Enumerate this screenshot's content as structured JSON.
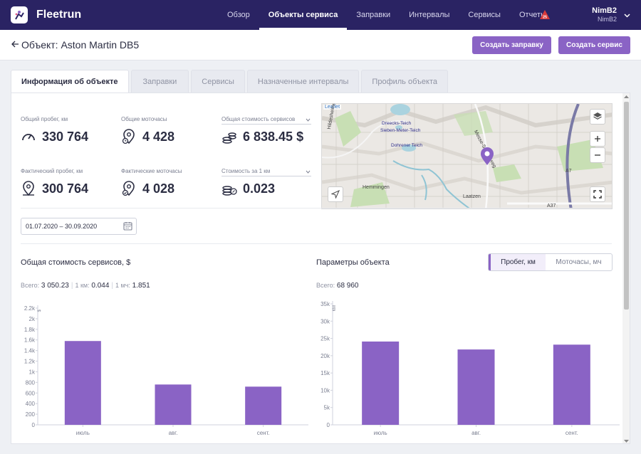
{
  "header": {
    "brand": "Fleetrun",
    "nav": [
      "Обзор",
      "Объекты сервиса",
      "Заправки",
      "Интервалы",
      "Сервисы",
      "Отчеты"
    ],
    "nav_active": 1,
    "notif_count": "25",
    "user_name": "NimB2",
    "user_login": "NimB2"
  },
  "subheader": {
    "title": "Объект: Aston Martin DB5",
    "btn_fuel": "Создать заправку",
    "btn_service": "Создать сервис"
  },
  "tabs": [
    "Информация об объекте",
    "Заправки",
    "Сервисы",
    "Назначенные интервалы",
    "Профиль объекта"
  ],
  "stats": {
    "total_mileage_label": "Общий пробег, км",
    "total_mileage": "330 764",
    "total_hours_label": "Общие моточасы",
    "total_hours": "4 428",
    "total_cost_label": "Общая стоимость сервисов",
    "total_cost": "6 838.45 $",
    "actual_mileage_label": "Фактический пробег, км",
    "actual_mileage": "300 764",
    "actual_hours_label": "Фактические моточасы",
    "actual_hours": "4 028",
    "cost_per_km_label": "Стоимость за 1 км",
    "cost_per_km": "0.023"
  },
  "map": {
    "attribution": "Leaflet",
    "labels": [
      "Dreecks-Teich",
      "Sieben-Meter-Teich",
      "Dohrener Teich",
      "Hemmingen",
      "Laatzen",
      "A7",
      "A37",
      "Messe-Schnellweg",
      "Hildesheimer Str."
    ]
  },
  "date_range": "01.07.2020 – 30.09.2020",
  "cost_chart": {
    "title": "Общая стоимость сервисов, $",
    "total_label": "Всего:",
    "total_value": "3 050.23",
    "per_km_label": "1 км:",
    "per_km_value": "0.044",
    "per_hour_label": "1 мч:",
    "per_hour_value": "1.851"
  },
  "params_chart": {
    "title": "Параметры объекта",
    "total_label": "Всего:",
    "total_value": "68 960",
    "toggle": [
      "Пробег, км",
      "Моточасы, мч"
    ]
  },
  "chart_data": [
    {
      "type": "bar",
      "categories": [
        "июль",
        "авг.",
        "сент."
      ],
      "values": [
        1580,
        760,
        720
      ],
      "ylabel": "$",
      "ylim": [
        0,
        2200
      ],
      "yticks": [
        "0",
        "200",
        "400",
        "600",
        "800",
        "1k",
        "1.2k",
        "1.4k",
        "1.6k",
        "1.8k",
        "2k",
        "2.2k"
      ],
      "ytick_values": [
        0,
        200,
        400,
        600,
        800,
        1000,
        1200,
        1400,
        1600,
        1800,
        2000,
        2200
      ],
      "color": "#8a63c5"
    },
    {
      "type": "bar",
      "categories": [
        "июль",
        "авг.",
        "сент."
      ],
      "values": [
        24100,
        21800,
        23200
      ],
      "ylabel": "КМ",
      "ylim": [
        0,
        35000
      ],
      "yticks": [
        "0",
        "5k",
        "10k",
        "15k",
        "20k",
        "25k",
        "30k",
        "35k"
      ],
      "ytick_values": [
        0,
        5000,
        10000,
        15000,
        20000,
        25000,
        30000,
        35000
      ],
      "color": "#8a63c5"
    }
  ]
}
